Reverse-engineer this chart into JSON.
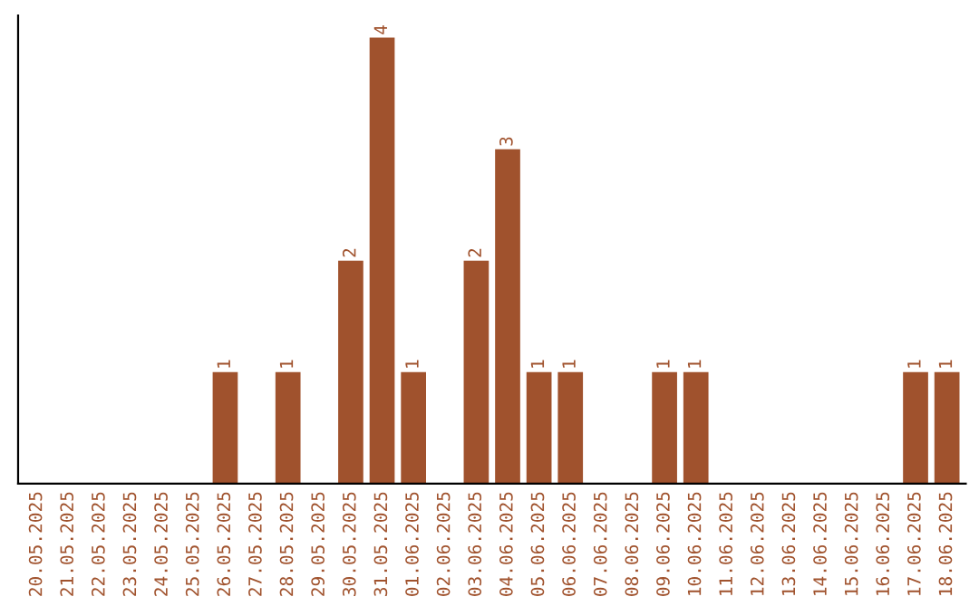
{
  "chart_data": {
    "type": "bar",
    "categories": [
      "20.05.2025",
      "21.05.2025",
      "22.05.2025",
      "23.05.2025",
      "24.05.2025",
      "25.05.2025",
      "26.05.2025",
      "27.05.2025",
      "28.05.2025",
      "29.05.2025",
      "30.05.2025",
      "31.05.2025",
      "01.06.2025",
      "02.06.2025",
      "03.06.2025",
      "04.06.2025",
      "05.06.2025",
      "06.06.2025",
      "07.06.2025",
      "08.06.2025",
      "09.06.2025",
      "10.06.2025",
      "11.06.2025",
      "12.06.2025",
      "13.06.2025",
      "14.06.2025",
      "15.06.2025",
      "16.06.2025",
      "17.06.2025",
      "18.06.2025"
    ],
    "values": [
      0,
      0,
      0,
      0,
      0,
      0,
      1,
      0,
      1,
      0,
      2,
      4,
      1,
      0,
      2,
      3,
      1,
      1,
      0,
      0,
      1,
      1,
      0,
      0,
      0,
      0,
      0,
      0,
      1,
      1
    ],
    "value_labels": [
      null,
      null,
      null,
      null,
      null,
      null,
      "1",
      null,
      "1",
      null,
      "2",
      "4",
      "1",
      null,
      "2",
      "3",
      "1",
      "1",
      null,
      null,
      "1",
      "1",
      null,
      null,
      null,
      null,
      null,
      null,
      "1",
      "1"
    ],
    "color": "#a0522d",
    "ylim": [
      0,
      4.2
    ],
    "tick_labels": "x",
    "grid": false,
    "legend": false
  }
}
